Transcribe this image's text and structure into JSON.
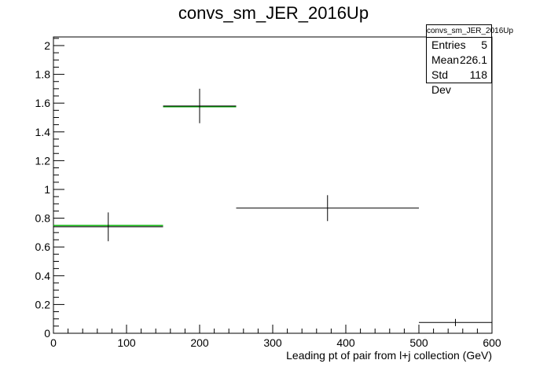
{
  "chart_data": {
    "type": "histogram",
    "title": "convs_sm_JER_2016Up",
    "xlabel": "Leading pt of pair from l+j collection (GeV)",
    "ylabel": "",
    "xlim": [
      0,
      600
    ],
    "ylim": [
      0,
      2.06
    ],
    "x_ticks": [
      0,
      100,
      200,
      300,
      400,
      500,
      600
    ],
    "y_ticks": [
      0,
      0.2,
      0.4,
      0.6,
      0.8,
      1,
      1.2,
      1.4,
      1.6,
      1.8,
      2
    ],
    "x_tick_labels": [
      "0",
      "100",
      "200",
      "300",
      "400",
      "500",
      "600"
    ],
    "y_tick_labels": [
      "0",
      "0.2",
      "0.4",
      "0.6",
      "0.8",
      "1",
      "1.2",
      "1.4",
      "1.6",
      "1.8",
      "2"
    ],
    "grid": false,
    "bins": [
      {
        "x_low": 0,
        "x_high": 150,
        "x_center": 75,
        "y": 0.74,
        "y_err": 0.1,
        "green_y": 0.75
      },
      {
        "x_low": 150,
        "x_high": 250,
        "x_center": 200,
        "y": 1.58,
        "y_err": 0.12,
        "green_y": 1.575
      },
      {
        "x_low": 250,
        "x_high": 500,
        "x_center": 375,
        "y": 0.87,
        "y_err": 0.09
      },
      {
        "x_low": 500,
        "x_high": 600,
        "x_center": 550,
        "y": 0.075,
        "y_err": 0.025
      }
    ],
    "colors": {
      "data": "#000000",
      "model": "#00aa00"
    }
  },
  "stats_box": {
    "title": "convs_sm_JER_2016Up",
    "rows": [
      {
        "label": "Entries",
        "value": "5"
      },
      {
        "label": "Mean",
        "value": "226.1"
      },
      {
        "label": "Std Dev",
        "value": "118"
      }
    ]
  }
}
